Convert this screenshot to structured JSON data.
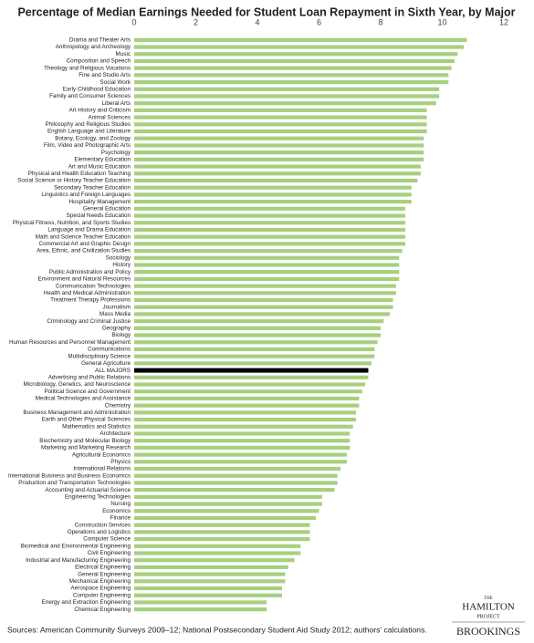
{
  "chart_data": {
    "type": "hbar",
    "title": "Percentage of Median Earnings Needed for Student Loan Repayment in Sixth Year, by Major",
    "categories": [
      "Drama and Theater Arts",
      "Anthropology and Archeology",
      "Music",
      "Composition and Speech",
      "Theology and Religious Vocations",
      "Fine and Studio Arts",
      "Social Work",
      "Early Childhood Education",
      "Family and Consumer Sciences",
      "Liberal Arts",
      "Art History and Criticism",
      "Animal Sciences",
      "Philosophy and Religious Studies",
      "English Language and Literature",
      "Botany, Ecology, and Zoology",
      "Film, Video and Photographic Arts",
      "Psychology",
      "Elementary Education",
      "Art and Music Education",
      "Physical and Health Education Teaching",
      "Social Science or History Teacher Education",
      "Secondary Teacher Education",
      "Linguistics and Foreign Languages",
      "Hospitality Management",
      "General Education",
      "Special Needs Education",
      "Physical Fitness, Nutrition, and Sports Studies",
      "Language and Drama Education",
      "Math and Science Teacher Education",
      "Commercial Art and Graphic Design",
      "Area, Ethnic, and Civilization Studies",
      "Sociology",
      "History",
      "Public Administration and Policy",
      "Environment and Natural Resources",
      "Communication Technologies",
      "Health and Medical Administration",
      "Treatment Therapy Professions",
      "Journalism",
      "Mass Media",
      "Criminology and Criminal Justice",
      "Geography",
      "Biology",
      "Human Resources and Personnel Management",
      "Communications",
      "Multidisciplinary Science",
      "General Agriculture",
      "ALL MAJORS",
      "Advertising and Public Relations",
      "Microbiology, Genetics, and Neuroscience",
      "Political Science and Government",
      "Medical Technologies and Assistance",
      "Chemistry",
      "Business Management and Administration",
      "Earth and Other Physical Sciences",
      "Mathematics and Statistics",
      "Architecture",
      "Biochemistry and Molecular Biology",
      "Marketing and Marketing Research",
      "Agricultural Economics",
      "Physics",
      "International Relations",
      "International Business and Business Economics",
      "Production and Transportation Technologies",
      "Accounting and Actuarial Science",
      "Engineering Technologies",
      "Nursing",
      "Economics",
      "Finance",
      "Construction Services",
      "Operations and Logistics",
      "Computer Science",
      "Biomedical and Environmental Engineering",
      "Civil Engineering",
      "Industrial and Manufacturing Engineering",
      "Electrical Engineering",
      "General Engineering",
      "Mechanical Engineering",
      "Aerospace Engineering",
      "Computer Engineering",
      "Energy and Extraction Engineering",
      "Chemical Engineering"
    ],
    "values": [
      10.8,
      10.7,
      10.5,
      10.4,
      10.3,
      10.2,
      10.2,
      9.9,
      9.9,
      9.8,
      9.5,
      9.5,
      9.5,
      9.5,
      9.4,
      9.4,
      9.4,
      9.4,
      9.3,
      9.3,
      9.2,
      9.0,
      9.0,
      9.0,
      8.8,
      8.8,
      8.8,
      8.8,
      8.8,
      8.8,
      8.7,
      8.6,
      8.6,
      8.6,
      8.6,
      8.5,
      8.5,
      8.4,
      8.4,
      8.3,
      8.1,
      8.0,
      8.0,
      7.9,
      7.8,
      7.8,
      7.7,
      7.6,
      7.6,
      7.5,
      7.4,
      7.3,
      7.3,
      7.2,
      7.2,
      7.1,
      7.0,
      7.0,
      7.0,
      6.9,
      6.9,
      6.7,
      6.6,
      6.6,
      6.5,
      6.1,
      6.1,
      6.0,
      5.9,
      5.7,
      5.7,
      5.7,
      5.4,
      5.4,
      5.2,
      5.0,
      4.9,
      4.9,
      4.8,
      4.8,
      4.3,
      4.3
    ],
    "color": "#a6d07f",
    "highlight": {
      "category": "ALL MAJORS",
      "color": "#000000"
    },
    "xlim": [
      0,
      12
    ],
    "xticks": [
      0,
      2,
      4,
      6,
      8,
      10,
      12
    ],
    "grid": false,
    "source": "Sources: American Community Surveys 2009–12; National Postsecondary Student Aid Study 2012; authors' calculations.",
    "logo": {
      "line1": "THE",
      "line2": "HAMILTON",
      "line3": "PROJECT",
      "brand": "BROOKINGS"
    }
  }
}
